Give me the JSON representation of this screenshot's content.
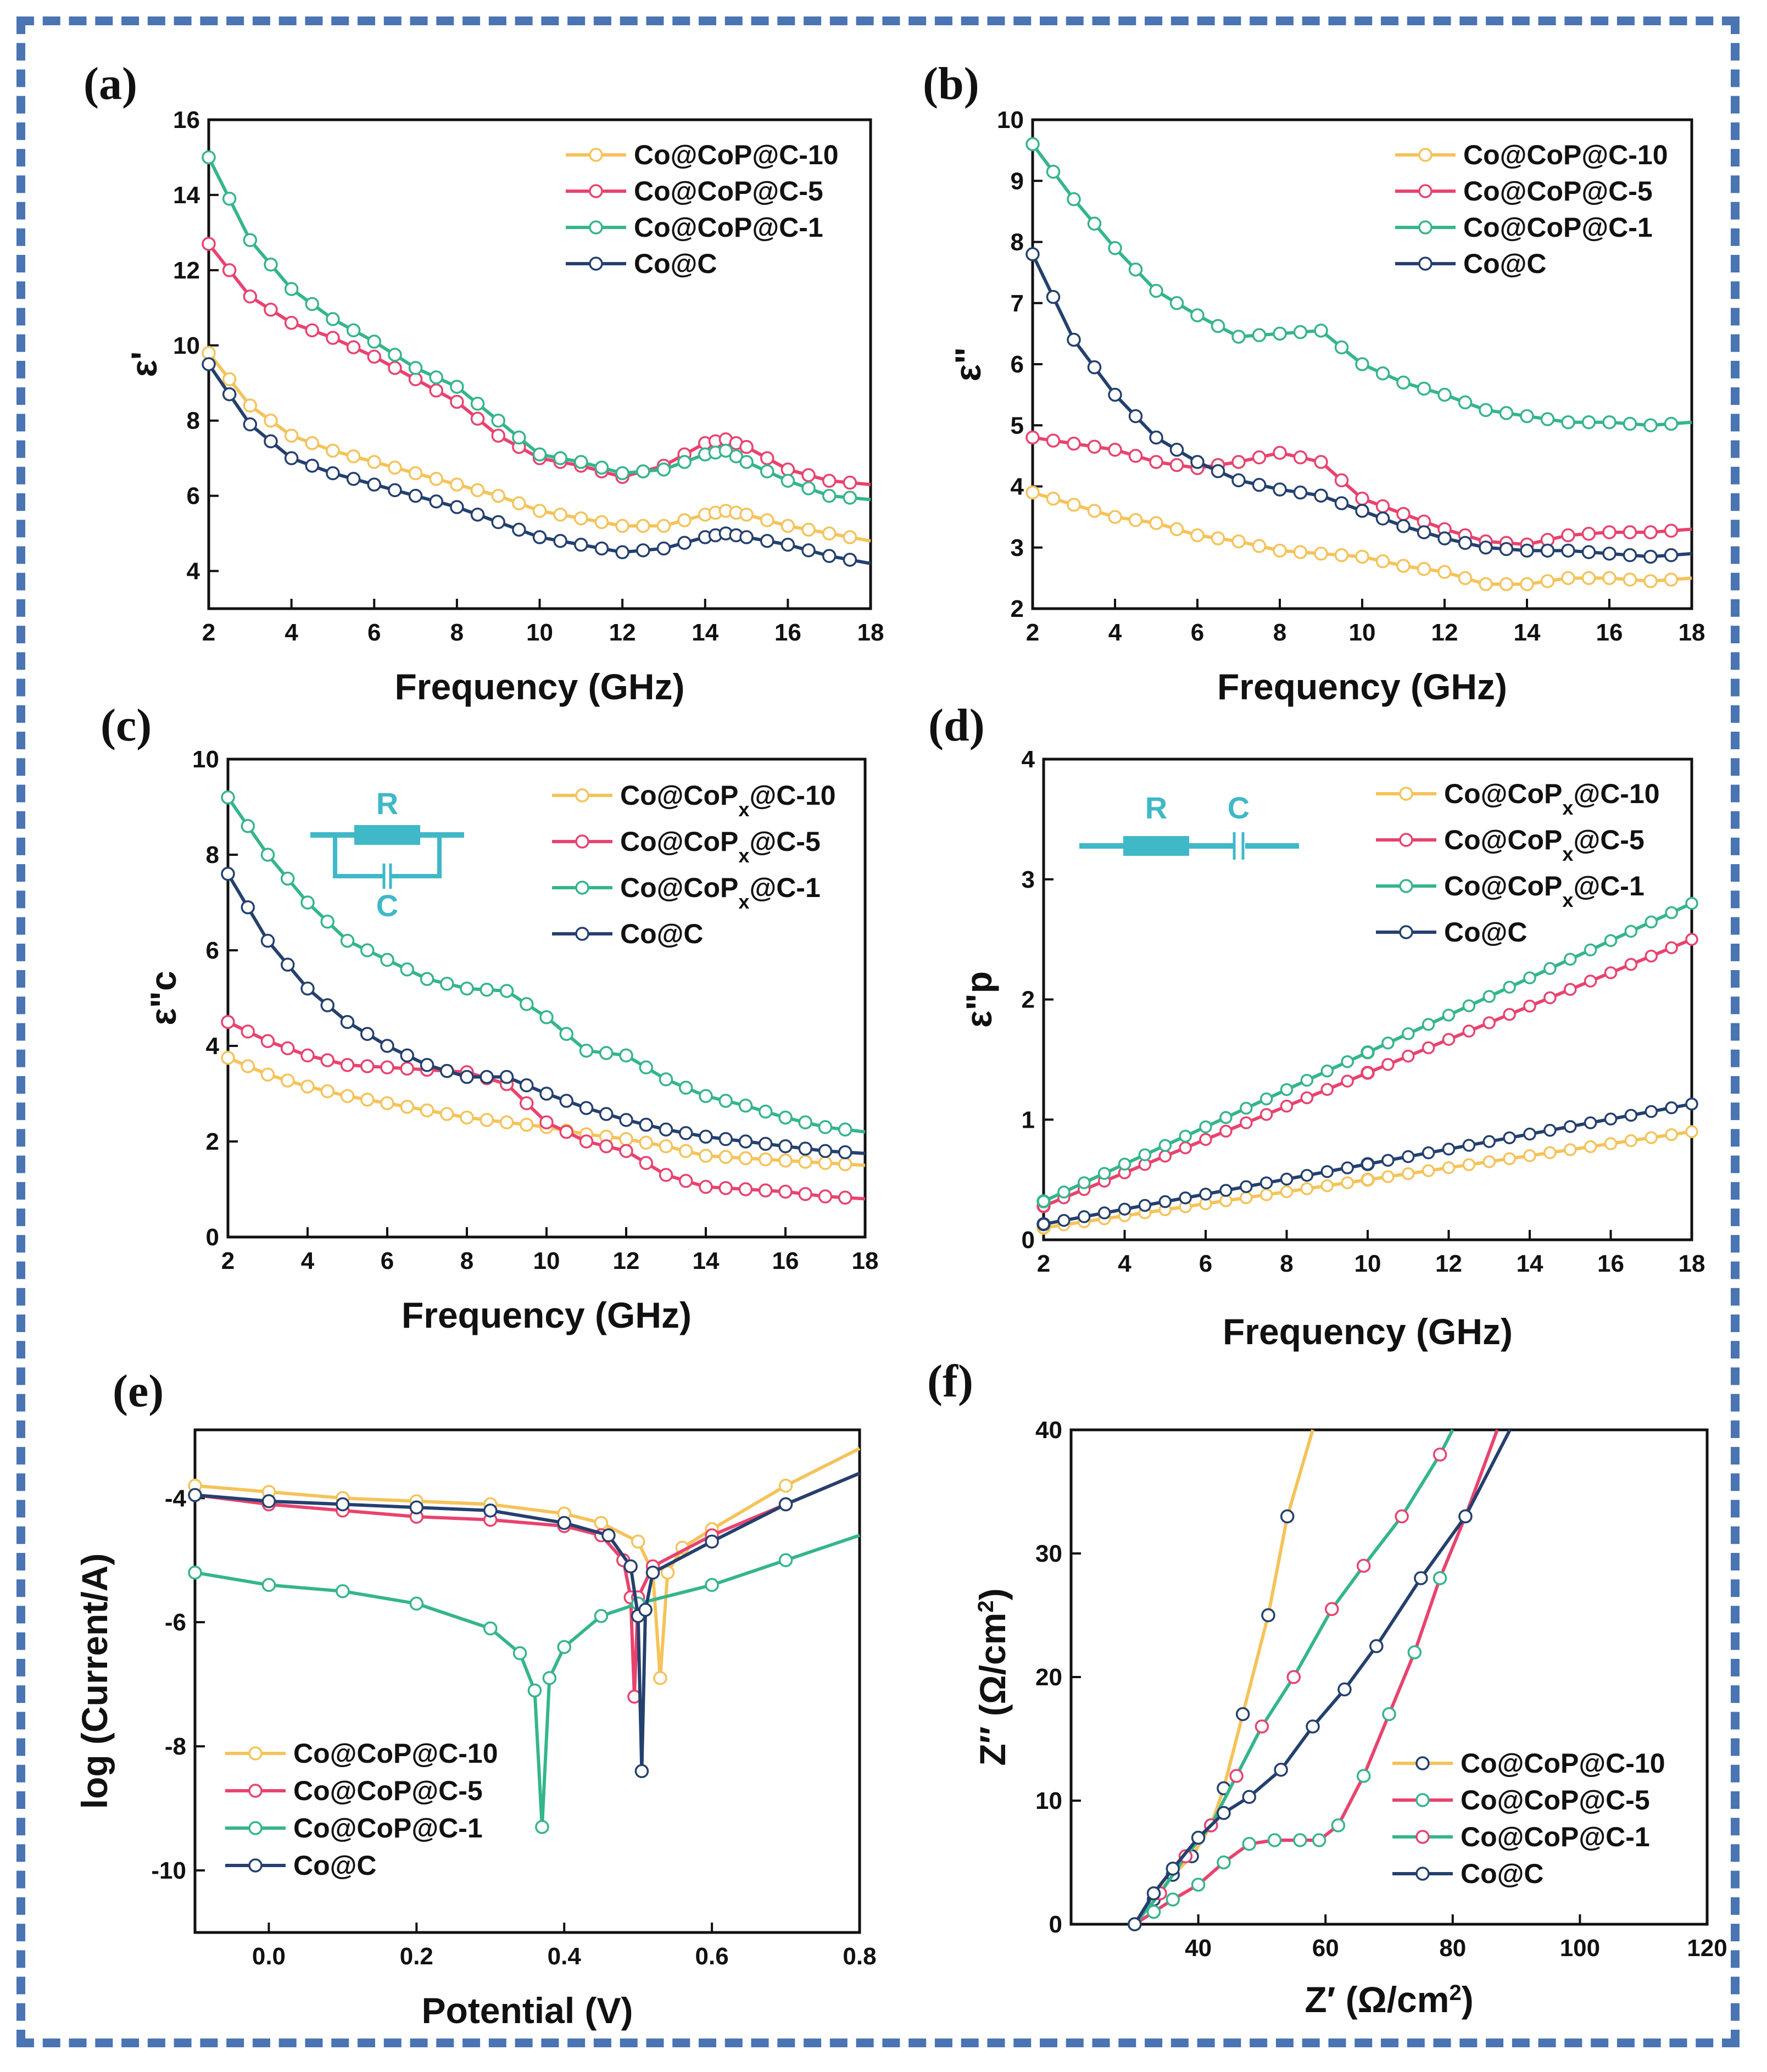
{
  "colors": {
    "yellow": "#f5c35a",
    "red": "#e8436e",
    "green": "#35b58c",
    "navy": "#24406e",
    "cyan": "#3fb8c8",
    "frame": "#4a74b2"
  },
  "chart_data": [
    {
      "id": "a",
      "type": "line",
      "panel_label": "(a)",
      "xlabel": "Frequency (GHz)",
      "ylabel": "ε'",
      "xlim": [
        2,
        18
      ],
      "ylim": [
        3,
        16
      ],
      "xticks": [
        "2",
        "4",
        "6",
        "8",
        "10",
        "12",
        "14",
        "16",
        "18"
      ],
      "yticks": [
        "4",
        "6",
        "8",
        "10",
        "12",
        "14",
        "16"
      ],
      "series": [
        {
          "name": "Co@CoP@C-10",
          "color": "yellow",
          "x": [
            2,
            3,
            4,
            5,
            6,
            7,
            8,
            9,
            10,
            11,
            12,
            13,
            14,
            14.5,
            15,
            16,
            17,
            18
          ],
          "y": [
            9.8,
            8.4,
            7.6,
            7.2,
            6.9,
            6.6,
            6.3,
            6.0,
            5.6,
            5.4,
            5.2,
            5.2,
            5.5,
            5.6,
            5.5,
            5.2,
            5.0,
            4.8
          ]
        },
        {
          "name": "Co@CoP@C-5",
          "color": "red",
          "x": [
            2,
            3,
            4,
            5,
            6,
            7,
            8,
            9,
            10,
            11,
            12,
            13,
            14,
            14.5,
            15,
            16,
            17,
            18
          ],
          "y": [
            12.7,
            11.3,
            10.6,
            10.2,
            9.7,
            9.1,
            8.5,
            7.6,
            7.0,
            6.8,
            6.5,
            6.8,
            7.4,
            7.5,
            7.3,
            6.7,
            6.4,
            6.3
          ]
        },
        {
          "name": "Co@CoP@C-1",
          "color": "green",
          "x": [
            2,
            3,
            4,
            5,
            6,
            7,
            8,
            9,
            10,
            11,
            12,
            13,
            14,
            14.5,
            15,
            16,
            17,
            18
          ],
          "y": [
            15.0,
            12.8,
            11.5,
            10.7,
            10.1,
            9.4,
            8.9,
            8.0,
            7.1,
            6.9,
            6.6,
            6.7,
            7.1,
            7.2,
            6.9,
            6.4,
            6.0,
            5.9
          ]
        },
        {
          "name": "Co@C",
          "color": "navy",
          "x": [
            2,
            3,
            4,
            5,
            6,
            7,
            8,
            9,
            10,
            11,
            12,
            13,
            14,
            14.5,
            15,
            16,
            17,
            18
          ],
          "y": [
            9.5,
            7.9,
            7.0,
            6.6,
            6.3,
            6.0,
            5.7,
            5.3,
            4.9,
            4.7,
            4.5,
            4.6,
            4.9,
            5.0,
            4.9,
            4.7,
            4.4,
            4.2
          ]
        }
      ]
    },
    {
      "id": "b",
      "type": "line",
      "panel_label": "(b)",
      "xlabel": "Frequency (GHz)",
      "ylabel": "ε\"",
      "xlim": [
        2,
        18
      ],
      "ylim": [
        2,
        10
      ],
      "xticks": [
        "2",
        "4",
        "6",
        "8",
        "10",
        "12",
        "14",
        "16",
        "18"
      ],
      "yticks": [
        "2",
        "3",
        "4",
        "5",
        "6",
        "7",
        "8",
        "9",
        "10"
      ],
      "series": [
        {
          "name": "Co@CoP@C-10",
          "color": "yellow",
          "x": [
            2,
            3,
            4,
            5,
            6,
            7,
            8,
            9,
            10,
            11,
            12,
            13,
            14,
            15,
            16,
            17,
            18
          ],
          "y": [
            3.9,
            3.7,
            3.5,
            3.4,
            3.2,
            3.1,
            2.95,
            2.9,
            2.85,
            2.7,
            2.6,
            2.4,
            2.4,
            2.5,
            2.5,
            2.45,
            2.5
          ]
        },
        {
          "name": "Co@CoP@C-5",
          "color": "red",
          "x": [
            2,
            3,
            4,
            5,
            6,
            7,
            8,
            9,
            10,
            11,
            12,
            13,
            14,
            15,
            16,
            17,
            18
          ],
          "y": [
            4.8,
            4.7,
            4.6,
            4.4,
            4.3,
            4.4,
            4.55,
            4.4,
            3.8,
            3.55,
            3.3,
            3.1,
            3.05,
            3.2,
            3.25,
            3.25,
            3.3
          ]
        },
        {
          "name": "Co@CoP@C-1",
          "color": "green",
          "x": [
            2,
            3,
            4,
            5,
            6,
            7,
            8,
            9,
            10,
            11,
            12,
            13,
            14,
            15,
            16,
            17,
            18
          ],
          "y": [
            9.6,
            8.7,
            7.9,
            7.2,
            6.8,
            6.45,
            6.5,
            6.55,
            6.0,
            5.7,
            5.5,
            5.25,
            5.15,
            5.05,
            5.05,
            5.0,
            5.05
          ]
        },
        {
          "name": "Co@C",
          "color": "navy",
          "x": [
            2,
            3,
            4,
            5,
            6,
            7,
            8,
            9,
            10,
            11,
            12,
            13,
            14,
            15,
            16,
            17,
            18
          ],
          "y": [
            7.8,
            6.4,
            5.5,
            4.8,
            4.4,
            4.1,
            3.95,
            3.85,
            3.6,
            3.35,
            3.15,
            3.0,
            2.95,
            2.95,
            2.9,
            2.85,
            2.9
          ]
        }
      ]
    },
    {
      "id": "c",
      "type": "line",
      "panel_label": "(c)",
      "xlabel": "Frequency (GHz)",
      "ylabel": "ε\"c",
      "xlim": [
        2,
        18
      ],
      "ylim": [
        0,
        10
      ],
      "xticks": [
        "2",
        "4",
        "6",
        "8",
        "10",
        "12",
        "14",
        "16",
        "18"
      ],
      "yticks": [
        "0",
        "2",
        "4",
        "6",
        "8",
        "10"
      ],
      "circuit": {
        "r_label": "R",
        "c_label": "C",
        "kind": "parallel"
      },
      "series": [
        {
          "name": "Co@CoPx@C-10",
          "name_base": "Co@CoP",
          "name_sub": "x",
          "name_tail": "@C-10",
          "color": "yellow",
          "x": [
            2,
            3,
            4,
            5,
            6,
            7,
            8,
            9,
            10,
            11,
            12,
            13,
            14,
            15,
            16,
            17,
            18
          ],
          "y": [
            3.75,
            3.4,
            3.15,
            2.95,
            2.8,
            2.65,
            2.5,
            2.4,
            2.3,
            2.15,
            2.05,
            1.9,
            1.7,
            1.65,
            1.6,
            1.55,
            1.5
          ]
        },
        {
          "name": "Co@CoPx@C-5",
          "name_base": "Co@CoP",
          "name_sub": "x",
          "name_tail": "@C-5",
          "color": "red",
          "x": [
            2,
            3,
            4,
            5,
            6,
            7,
            8,
            9,
            10,
            11,
            12,
            13,
            14,
            15,
            16,
            17,
            18
          ],
          "y": [
            4.5,
            4.1,
            3.8,
            3.6,
            3.55,
            3.5,
            3.45,
            3.2,
            2.4,
            2.0,
            1.8,
            1.3,
            1.05,
            1.0,
            0.95,
            0.85,
            0.8
          ]
        },
        {
          "name": "Co@CoPx@C-1",
          "name_base": "Co@CoP",
          "name_sub": "x",
          "name_tail": "@C-1",
          "color": "green",
          "x": [
            2,
            3,
            4,
            5,
            6,
            7,
            8,
            9,
            10,
            11,
            12,
            13,
            14,
            15,
            16,
            17,
            18
          ],
          "y": [
            9.2,
            8.0,
            7.0,
            6.2,
            5.8,
            5.4,
            5.2,
            5.15,
            4.6,
            3.9,
            3.8,
            3.3,
            2.95,
            2.75,
            2.5,
            2.3,
            2.2
          ]
        },
        {
          "name": "Co@C",
          "name_base": "Co@C",
          "name_sub": "",
          "name_tail": "",
          "color": "navy",
          "x": [
            2,
            3,
            4,
            5,
            6,
            7,
            8,
            9,
            10,
            11,
            12,
            13,
            14,
            15,
            16,
            17,
            18
          ],
          "y": [
            7.6,
            6.2,
            5.2,
            4.5,
            4.0,
            3.6,
            3.35,
            3.35,
            3.0,
            2.7,
            2.45,
            2.25,
            2.1,
            2.0,
            1.9,
            1.8,
            1.75
          ]
        }
      ]
    },
    {
      "id": "d",
      "type": "line",
      "panel_label": "(d)",
      "xlabel": "Frequency (GHz)",
      "ylabel": "ε\"p",
      "xlim": [
        2,
        18
      ],
      "ylim": [
        0,
        4
      ],
      "xticks": [
        "2",
        "4",
        "6",
        "8",
        "10",
        "12",
        "14",
        "16",
        "18"
      ],
      "yticks": [
        "0",
        "1",
        "2",
        "3",
        "4"
      ],
      "circuit": {
        "r_label": "R",
        "c_label": "C",
        "kind": "series"
      },
      "series": [
        {
          "name": "Co@CoPx@C-10",
          "name_base": "Co@CoP",
          "name_sub": "x",
          "name_tail": "@C-10",
          "color": "yellow",
          "x": [
            2,
            18
          ],
          "y": [
            0.1,
            0.9
          ]
        },
        {
          "name": "Co@CoPx@C-5",
          "name_base": "Co@CoP",
          "name_sub": "x",
          "name_tail": "@C-5",
          "color": "red",
          "x": [
            2,
            18
          ],
          "y": [
            0.28,
            2.5
          ]
        },
        {
          "name": "Co@CoPx@C-1",
          "name_base": "Co@CoP",
          "name_sub": "x",
          "name_tail": "@C-1",
          "color": "green",
          "x": [
            2,
            18
          ],
          "y": [
            0.32,
            2.8
          ]
        },
        {
          "name": "Co@C",
          "name_base": "Co@C",
          "name_sub": "",
          "name_tail": "",
          "color": "navy",
          "x": [
            2,
            18
          ],
          "y": [
            0.13,
            1.13
          ]
        }
      ]
    },
    {
      "id": "e",
      "type": "line",
      "panel_label": "(e)",
      "xlabel": "Potential (V)",
      "ylabel": "log (Current/A)",
      "xlim": [
        -0.1,
        0.8
      ],
      "ylim": [
        -11,
        -2.9
      ],
      "xticks": [
        "0.0",
        "0.2",
        "0.4",
        "0.6",
        "0.8"
      ],
      "yticks": [
        "-4",
        "-6",
        "-8",
        "-10"
      ],
      "series": [
        {
          "name": "Co@CoP@C-10",
          "color": "yellow",
          "x": [
            -0.1,
            0.0,
            0.1,
            0.2,
            0.3,
            0.4,
            0.45,
            0.5,
            0.52,
            0.53,
            0.54,
            0.56,
            0.6,
            0.7,
            0.8
          ],
          "y": [
            -3.8,
            -3.9,
            -4.0,
            -4.05,
            -4.1,
            -4.25,
            -4.4,
            -4.7,
            -5.2,
            -6.9,
            -5.2,
            -4.8,
            -4.5,
            -3.8,
            -3.2
          ]
        },
        {
          "name": "Co@CoP@C-5",
          "color": "red",
          "x": [
            -0.1,
            0.0,
            0.1,
            0.2,
            0.3,
            0.4,
            0.45,
            0.48,
            0.49,
            0.495,
            0.5,
            0.52,
            0.6,
            0.7,
            0.8
          ],
          "y": [
            -3.95,
            -4.1,
            -4.2,
            -4.3,
            -4.35,
            -4.45,
            -4.6,
            -5.0,
            -5.6,
            -7.2,
            -5.6,
            -5.1,
            -4.6,
            -4.1,
            -3.6
          ]
        },
        {
          "name": "Co@CoP@C-1",
          "color": "green",
          "x": [
            -0.1,
            0.0,
            0.1,
            0.2,
            0.3,
            0.34,
            0.36,
            0.37,
            0.38,
            0.4,
            0.45,
            0.5,
            0.6,
            0.7,
            0.8
          ],
          "y": [
            -5.2,
            -5.4,
            -5.5,
            -5.7,
            -6.1,
            -6.5,
            -7.1,
            -9.3,
            -6.9,
            -6.4,
            -5.9,
            -5.7,
            -5.4,
            -5.0,
            -4.6
          ]
        },
        {
          "name": "Co@C",
          "color": "navy",
          "x": [
            -0.1,
            0.0,
            0.1,
            0.2,
            0.3,
            0.4,
            0.46,
            0.49,
            0.5,
            0.505,
            0.51,
            0.52,
            0.6,
            0.7,
            0.8
          ],
          "y": [
            -3.95,
            -4.05,
            -4.1,
            -4.15,
            -4.2,
            -4.4,
            -4.6,
            -5.1,
            -5.9,
            -8.4,
            -5.8,
            -5.2,
            -4.7,
            -4.1,
            -3.6
          ]
        }
      ]
    },
    {
      "id": "f",
      "type": "line",
      "panel_label": "(f)",
      "xlabel_main": "Z′ (Ω/cm",
      "xlabel_sup": "2",
      "xlabel_tail": ")",
      "ylabel_main": "Z″ (Ω/cm",
      "ylabel_sup": "2",
      "ylabel_tail": ")",
      "xlim": [
        20,
        120
      ],
      "ylim": [
        0,
        40
      ],
      "xticks": [
        "40",
        "60",
        "80",
        "100",
        "120"
      ],
      "yticks": [
        "0",
        "10",
        "20",
        "30",
        "40"
      ],
      "series": [
        {
          "name": "Co@CoP@C-10",
          "color": "yellow",
          "marker": "navy",
          "x": [
            30,
            33,
            36,
            39,
            42,
            44,
            47,
            51,
            54,
            58
          ],
          "y": [
            0,
            2,
            4,
            5.5,
            8,
            11,
            17,
            25,
            33,
            40
          ]
        },
        {
          "name": "Co@CoP@C-5",
          "color": "red",
          "marker": "green",
          "x": [
            30,
            33,
            36,
            40,
            44,
            48,
            52,
            56,
            59,
            62,
            66,
            70,
            74,
            78,
            82,
            87
          ],
          "y": [
            0,
            1,
            2,
            3.2,
            5,
            6.5,
            6.8,
            6.8,
            6.8,
            8,
            12,
            17,
            22,
            28,
            33,
            40
          ]
        },
        {
          "name": "Co@CoP@C-1",
          "color": "green",
          "marker": "red",
          "x": [
            30,
            34,
            38,
            42,
            46,
            50,
            55,
            61,
            66,
            72,
            78,
            80
          ],
          "y": [
            0,
            2.5,
            5.5,
            8,
            12,
            16,
            20,
            25.5,
            29,
            33,
            38,
            40
          ]
        },
        {
          "name": "Co@C",
          "color": "navy",
          "marker": "navy",
          "x": [
            30,
            33,
            36,
            40,
            44,
            48,
            53,
            58,
            63,
            68,
            75,
            82,
            89
          ],
          "y": [
            0,
            2.5,
            4.5,
            7,
            9,
            10.3,
            12.5,
            16,
            19,
            22.5,
            28,
            33,
            40
          ]
        }
      ]
    }
  ]
}
